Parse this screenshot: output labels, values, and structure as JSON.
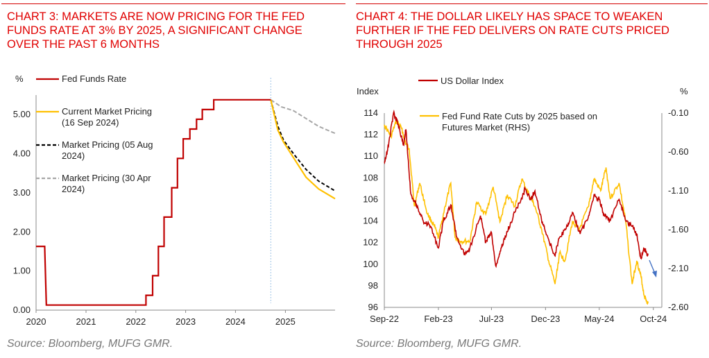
{
  "colors": {
    "title": "#e00000",
    "fed_red": "#c00000",
    "gold": "#ffc000",
    "black": "#000000",
    "gray": "#a6a6a6",
    "divider": "#9dc3e6",
    "arrow": "#4472c4"
  },
  "left": {
    "title": "CHART 3: MARKETS ARE NOW PRICING FOR THE FED\nFUNDS RATE AT 3% BY 2025, A SIGNIFICANT CHANGE\nOVER THE PAST 6 MONTHS",
    "source": "Source: Bloomberg, MUFG GMR."
  },
  "right": {
    "title": "CHART 4: THE DOLLAR LIKELY HAS SPACE TO WEAKEN\nFURTHER IF THE FED DELIVERS ON RATE CUTS PRICED\nTHROUGH 2025",
    "source": "Source: Bloomberg, MUFG GMR."
  },
  "chart_data": [
    {
      "type": "line",
      "y_unit_label": "%",
      "ylim": [
        0,
        5.5
      ],
      "xlim": [
        "2020-01-01",
        "2025-12-31"
      ],
      "y_ticks": [
        "0.00",
        "1.00",
        "2.00",
        "3.00",
        "4.00",
        "5.00"
      ],
      "x_ticks": [
        "2020",
        "2021",
        "2022",
        "2023",
        "2024",
        "2025"
      ],
      "legend_position": "top-left",
      "series": [
        {
          "name": "Fed Funds Rate",
          "color": "#c00000",
          "style": "solid",
          "points": [
            [
              "2020-01-01",
              1.63
            ],
            [
              "2020-03-04",
              1.63
            ],
            [
              "2020-03-16",
              0.13
            ],
            [
              "2022-03-16",
              0.13
            ],
            [
              "2022-03-16",
              0.38
            ],
            [
              "2022-05-04",
              0.38
            ],
            [
              "2022-05-04",
              0.88
            ],
            [
              "2022-06-15",
              0.88
            ],
            [
              "2022-06-15",
              1.63
            ],
            [
              "2022-07-27",
              1.63
            ],
            [
              "2022-07-27",
              2.38
            ],
            [
              "2022-09-21",
              2.38
            ],
            [
              "2022-09-21",
              3.13
            ],
            [
              "2022-11-02",
              3.13
            ],
            [
              "2022-11-02",
              3.88
            ],
            [
              "2022-12-14",
              3.88
            ],
            [
              "2022-12-14",
              4.38
            ],
            [
              "2023-02-01",
              4.38
            ],
            [
              "2023-02-01",
              4.63
            ],
            [
              "2023-03-22",
              4.63
            ],
            [
              "2023-03-22",
              4.88
            ],
            [
              "2023-05-03",
              4.88
            ],
            [
              "2023-05-03",
              5.13
            ],
            [
              "2023-07-26",
              5.13
            ],
            [
              "2023-07-26",
              5.38
            ],
            [
              "2024-09-16",
              5.38
            ]
          ]
        },
        {
          "name": "Current Market Pricing\n(16 Sep 2024)",
          "color": "#ffc000",
          "style": "solid",
          "points": [
            [
              "2024-09-16",
              5.38
            ],
            [
              "2024-11-07",
              4.6
            ],
            [
              "2024-12-18",
              4.3
            ],
            [
              "2025-03-01",
              3.9
            ],
            [
              "2025-06-01",
              3.4
            ],
            [
              "2025-09-01",
              3.1
            ],
            [
              "2025-12-31",
              2.85
            ]
          ]
        },
        {
          "name": "Market Pricing (05 Aug\n2024)",
          "color": "#000000",
          "style": "dashed",
          "points": [
            [
              "2024-09-16",
              5.38
            ],
            [
              "2024-11-07",
              4.7
            ],
            [
              "2024-12-18",
              4.35
            ],
            [
              "2025-03-01",
              4.0
            ],
            [
              "2025-06-01",
              3.6
            ],
            [
              "2025-09-01",
              3.3
            ],
            [
              "2025-12-31",
              3.05
            ]
          ]
        },
        {
          "name": "Market Pricing (30 Apr\n2024)",
          "color": "#a6a6a6",
          "style": "dashed",
          "points": [
            [
              "2024-09-16",
              5.38
            ],
            [
              "2024-12-01",
              5.2
            ],
            [
              "2025-03-01",
              5.1
            ],
            [
              "2025-06-01",
              4.9
            ],
            [
              "2025-09-01",
              4.7
            ],
            [
              "2025-12-31",
              4.52
            ]
          ]
        }
      ]
    },
    {
      "type": "line",
      "y_left_label": "Index",
      "y_right_label": "%",
      "ylim": [
        96,
        114
      ],
      "y2lim": [
        -2.6,
        -0.1
      ],
      "xlim": [
        "2022-09-01",
        "2024-10-25"
      ],
      "y_ticks": [
        "96",
        "98",
        "100",
        "102",
        "104",
        "106",
        "108",
        "110",
        "112",
        "114"
      ],
      "y2_ticks": [
        "-0.10",
        "-0.60",
        "-1.10",
        "-1.60",
        "-2.10",
        "-2.60"
      ],
      "x_ticks": [
        "Sep-22",
        "Feb-23",
        "Jul-23",
        "Dec-23",
        "May-24",
        "Oct-24"
      ],
      "legend_position": "top",
      "series": [
        {
          "name": "US Dollar Index",
          "color": "#c00000",
          "axis": "left",
          "points": [
            [
              "2022-09-01",
              109.5
            ],
            [
              "2022-09-10",
              110.5
            ],
            [
              "2022-09-27",
              114.0
            ],
            [
              "2022-10-10",
              113.0
            ],
            [
              "2022-10-25",
              111.0
            ],
            [
              "2022-11-01",
              112.5
            ],
            [
              "2022-11-15",
              106.5
            ],
            [
              "2022-12-01",
              105.5
            ],
            [
              "2022-12-20",
              104.0
            ],
            [
              "2023-01-10",
              103.5
            ],
            [
              "2023-02-01",
              101.5
            ],
            [
              "2023-02-15",
              104.0
            ],
            [
              "2023-03-08",
              105.5
            ],
            [
              "2023-03-25",
              102.5
            ],
            [
              "2023-04-14",
              101.0
            ],
            [
              "2023-05-01",
              101.5
            ],
            [
              "2023-05-31",
              104.5
            ],
            [
              "2023-06-15",
              102.0
            ],
            [
              "2023-06-30",
              103.0
            ],
            [
              "2023-07-14",
              99.8
            ],
            [
              "2023-07-28",
              101.5
            ],
            [
              "2023-08-15",
              103.0
            ],
            [
              "2023-09-05",
              104.8
            ],
            [
              "2023-09-30",
              106.5
            ],
            [
              "2023-10-03",
              107.0
            ],
            [
              "2023-10-20",
              106.0
            ],
            [
              "2023-11-01",
              106.8
            ],
            [
              "2023-11-20",
              104.0
            ],
            [
              "2023-12-01",
              103.0
            ],
            [
              "2023-12-27",
              100.8
            ],
            [
              "2024-01-10",
              102.5
            ],
            [
              "2024-02-01",
              103.5
            ],
            [
              "2024-02-15",
              104.8
            ],
            [
              "2024-03-08",
              102.8
            ],
            [
              "2024-04-01",
              104.5
            ],
            [
              "2024-04-16",
              106.4
            ],
            [
              "2024-05-01",
              106.0
            ],
            [
              "2024-05-15",
              104.5
            ],
            [
              "2024-06-01",
              104.0
            ],
            [
              "2024-06-26",
              106.0
            ],
            [
              "2024-07-15",
              104.0
            ],
            [
              "2024-08-02",
              103.5
            ],
            [
              "2024-08-15",
              102.8
            ],
            [
              "2024-08-27",
              100.5
            ],
            [
              "2024-09-05",
              101.5
            ],
            [
              "2024-09-16",
              100.8
            ]
          ]
        },
        {
          "name": "Fed Fund Rate Cuts by 2025 based on\nFutures Market (RHS)",
          "color": "#ffc000",
          "axis": "right",
          "points": [
            [
              "2022-09-01",
              -0.25
            ],
            [
              "2022-09-20",
              -0.4
            ],
            [
              "2022-10-05",
              -0.2
            ],
            [
              "2022-10-20",
              -0.3
            ],
            [
              "2022-11-01",
              -0.5
            ],
            [
              "2022-11-10",
              -0.55
            ],
            [
              "2022-11-25",
              -1.3
            ],
            [
              "2022-12-10",
              -1.0
            ],
            [
              "2023-01-01",
              -1.4
            ],
            [
              "2023-01-20",
              -1.55
            ],
            [
              "2023-02-01",
              -1.7
            ],
            [
              "2023-02-20",
              -1.3
            ],
            [
              "2023-03-08",
              -1.0
            ],
            [
              "2023-03-20",
              -1.7
            ],
            [
              "2023-04-05",
              -1.75
            ],
            [
              "2023-05-01",
              -1.75
            ],
            [
              "2023-05-20",
              -1.25
            ],
            [
              "2023-06-15",
              -1.4
            ],
            [
              "2023-07-06",
              -1.05
            ],
            [
              "2023-07-25",
              -1.5
            ],
            [
              "2023-08-15",
              -1.15
            ],
            [
              "2023-09-05",
              -1.3
            ],
            [
              "2023-09-25",
              -0.95
            ],
            [
              "2023-10-15",
              -1.15
            ],
            [
              "2023-11-01",
              -1.3
            ],
            [
              "2023-11-20",
              -1.6
            ],
            [
              "2023-12-10",
              -2.0
            ],
            [
              "2023-12-28",
              -2.3
            ],
            [
              "2024-01-10",
              -1.9
            ],
            [
              "2024-01-25",
              -2.0
            ],
            [
              "2024-02-15",
              -1.5
            ],
            [
              "2024-03-05",
              -1.6
            ],
            [
              "2024-04-01",
              -1.3
            ],
            [
              "2024-04-16",
              -0.95
            ],
            [
              "2024-05-05",
              -1.1
            ],
            [
              "2024-05-20",
              -0.8
            ],
            [
              "2024-06-01",
              -1.2
            ],
            [
              "2024-06-26",
              -1.0
            ],
            [
              "2024-07-15",
              -1.5
            ],
            [
              "2024-08-02",
              -2.3
            ],
            [
              "2024-08-15",
              -2.0
            ],
            [
              "2024-08-27",
              -2.2
            ],
            [
              "2024-09-05",
              -2.45
            ],
            [
              "2024-09-16",
              -2.55
            ]
          ]
        }
      ]
    }
  ]
}
